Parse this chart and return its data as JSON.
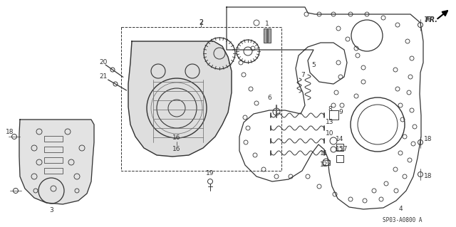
{
  "background_color": "#ffffff",
  "diagram_code": "SP03-A0800 A",
  "fr_label": "FR.",
  "fig_width": 6.4,
  "fig_height": 3.19,
  "dpi": 100,
  "line_color": "#333333",
  "mid_color": "#666666"
}
